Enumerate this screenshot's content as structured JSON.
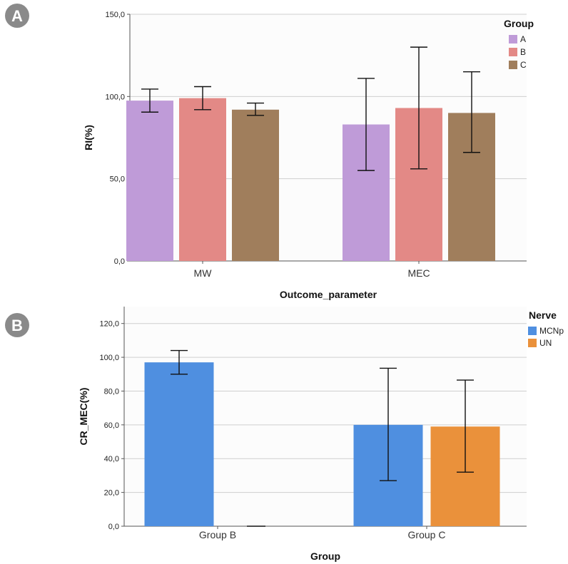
{
  "panels": {
    "a": {
      "label": "A"
    },
    "b": {
      "label": "B"
    }
  },
  "chart_data": [
    {
      "type": "bar",
      "title": "",
      "xlabel": "Outcome_parameter",
      "ylabel": "RI(%)",
      "ylim": [
        0,
        150
      ],
      "yticks": [
        0,
        50,
        100,
        150
      ],
      "ytick_labels": [
        "0,0",
        "50,0",
        "100,0",
        "150,0"
      ],
      "categories": [
        "MW",
        "MEC"
      ],
      "grid": true,
      "legend": {
        "title": "Group",
        "position": "top-right"
      },
      "error_bars": true,
      "series": [
        {
          "name": "A",
          "color": "#bf9bd8",
          "values": [
            97.5,
            83.0
          ],
          "err_low": [
            90.5,
            55.0
          ],
          "err_high": [
            104.5,
            111.0
          ]
        },
        {
          "name": "B",
          "color": "#e38986",
          "values": [
            99.0,
            93.0
          ],
          "err_low": [
            92.0,
            56.0
          ],
          "err_high": [
            106.0,
            130.0
          ]
        },
        {
          "name": "C",
          "color": "#a07e5c",
          "values": [
            92.0,
            90.0
          ],
          "err_low": [
            88.5,
            66.0
          ],
          "err_high": [
            96.0,
            115.0
          ]
        }
      ]
    },
    {
      "type": "bar",
      "title": "",
      "xlabel": "Group",
      "ylabel": "CR_MEC(%)",
      "ylim": [
        0,
        130
      ],
      "yticks": [
        0,
        20,
        40,
        60,
        80,
        100,
        120
      ],
      "ytick_labels": [
        "0,0",
        "20,0",
        "40,0",
        "60,0",
        "80,0",
        "100,0",
        "120,0"
      ],
      "categories": [
        "Group B",
        "Group C"
      ],
      "grid": true,
      "legend": {
        "title": "Nerve",
        "position": "top-right"
      },
      "error_bars": true,
      "series": [
        {
          "name": "MCNp",
          "color": "#4f8fe0",
          "values": [
            97.0,
            60.0
          ],
          "err_low": [
            90.0,
            27.0
          ],
          "err_high": [
            104.0,
            93.5
          ]
        },
        {
          "name": "UN",
          "color": "#ea913b",
          "values": [
            0.0,
            59.0
          ],
          "err_low": [
            0.0,
            32.0
          ],
          "err_high": [
            0.0,
            86.5
          ]
        }
      ]
    }
  ]
}
